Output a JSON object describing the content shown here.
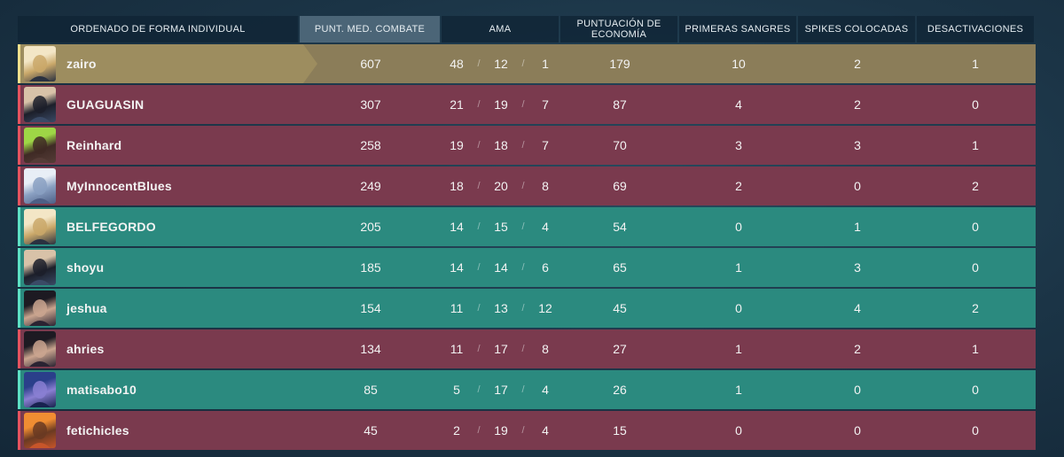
{
  "headers": [
    "ORDENADO DE FORMA INDIVIDUAL",
    "PUNT. MED. COMBATE",
    "AMA",
    "PUNTUACIÓN DE ECONOMÍA",
    "PRIMERAS SANGRES",
    "SPIKES COLOCADAS",
    "DESACTIVACIONES"
  ],
  "kda_separator": "/",
  "colors": {
    "red_row": "#7a3a4e",
    "teal_row": "#2b8a7f",
    "gold_row": "#8b7d59"
  },
  "players": [
    {
      "name": "zairo",
      "team": "gold",
      "acs": "607",
      "k": "48",
      "d": "12",
      "a": "1",
      "econ": "179",
      "fb": "10",
      "plants": "2",
      "defuses": "1",
      "avatar": "agent-portrait-blonde"
    },
    {
      "name": "GUAGUASIN",
      "team": "red",
      "acs": "307",
      "k": "21",
      "d": "19",
      "a": "7",
      "econ": "87",
      "fb": "4",
      "plants": "2",
      "defuses": "0",
      "avatar": "agent-portrait-headband"
    },
    {
      "name": "Reinhard",
      "team": "red",
      "acs": "258",
      "k": "19",
      "d": "18",
      "a": "7",
      "econ": "70",
      "fb": "3",
      "plants": "3",
      "defuses": "1",
      "avatar": "agent-portrait-green-hair"
    },
    {
      "name": "MyInnocentBlues",
      "team": "red",
      "acs": "249",
      "k": "18",
      "d": "20",
      "a": "8",
      "econ": "69",
      "fb": "2",
      "plants": "0",
      "defuses": "2",
      "avatar": "agent-portrait-white-hair"
    },
    {
      "name": "BELFEGORDO",
      "team": "teal",
      "acs": "205",
      "k": "14",
      "d": "15",
      "a": "4",
      "econ": "54",
      "fb": "0",
      "plants": "1",
      "defuses": "0",
      "avatar": "agent-portrait-blonde"
    },
    {
      "name": "shoyu",
      "team": "teal",
      "acs": "185",
      "k": "14",
      "d": "14",
      "a": "6",
      "econ": "65",
      "fb": "1",
      "plants": "3",
      "defuses": "0",
      "avatar": "agent-portrait-headband"
    },
    {
      "name": "jeshua",
      "team": "teal",
      "acs": "154",
      "k": "11",
      "d": "13",
      "a": "12",
      "econ": "45",
      "fb": "0",
      "plants": "4",
      "defuses": "2",
      "avatar": "agent-portrait-dark-hair"
    },
    {
      "name": "ahries",
      "team": "red",
      "acs": "134",
      "k": "11",
      "d": "17",
      "a": "8",
      "econ": "27",
      "fb": "1",
      "plants": "2",
      "defuses": "1",
      "avatar": "agent-portrait-dark-hair"
    },
    {
      "name": "matisabo10",
      "team": "teal",
      "acs": "85",
      "k": "5",
      "d": "17",
      "a": "4",
      "econ": "26",
      "fb": "1",
      "plants": "0",
      "defuses": "0",
      "avatar": "agent-portrait-hood"
    },
    {
      "name": "fetichicles",
      "team": "red",
      "acs": "45",
      "k": "2",
      "d": "19",
      "a": "4",
      "econ": "15",
      "fb": "0",
      "plants": "0",
      "defuses": "0",
      "avatar": "agent-portrait-orange"
    }
  ]
}
